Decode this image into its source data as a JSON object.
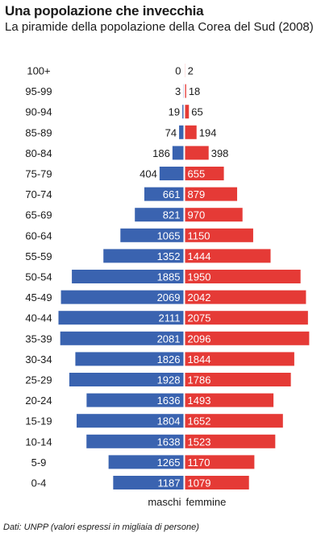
{
  "header": {
    "title": "Una popolazione che invecchia",
    "subtitle": "La piramide della popolazione della Corea del Sud (2008)"
  },
  "footer": {
    "source": "Dati: UNPP (valori espressi in migliaia di persone)"
  },
  "colors": {
    "males": "#3a63b0",
    "females": "#e53a36"
  },
  "chart_data": {
    "type": "bar",
    "orientation": "horizontal-pyramid",
    "categories": [
      "100+",
      "95-99",
      "90-94",
      "85-89",
      "80-84",
      "75-79",
      "70-74",
      "65-69",
      "60-64",
      "55-59",
      "50-54",
      "45-49",
      "40-44",
      "35-39",
      "30-34",
      "25-29",
      "20-24",
      "15-19",
      "10-14",
      "5-9",
      "0-4"
    ],
    "series": [
      {
        "name": "maschi",
        "values": [
          0,
          3,
          19,
          74,
          186,
          404,
          661,
          821,
          1065,
          1352,
          1885,
          2069,
          2111,
          2081,
          1826,
          1928,
          1636,
          1804,
          1638,
          1265,
          1187
        ]
      },
      {
        "name": "femmine",
        "values": [
          2,
          18,
          65,
          194,
          398,
          655,
          879,
          970,
          1150,
          1444,
          1950,
          2042,
          2075,
          2096,
          1844,
          1786,
          1493,
          1652,
          1523,
          1170,
          1079
        ]
      }
    ],
    "title": "Una popolazione che invecchia",
    "subtitle": "La piramide della popolazione della Corea del Sud (2008)",
    "unit": "migliaia di persone"
  }
}
